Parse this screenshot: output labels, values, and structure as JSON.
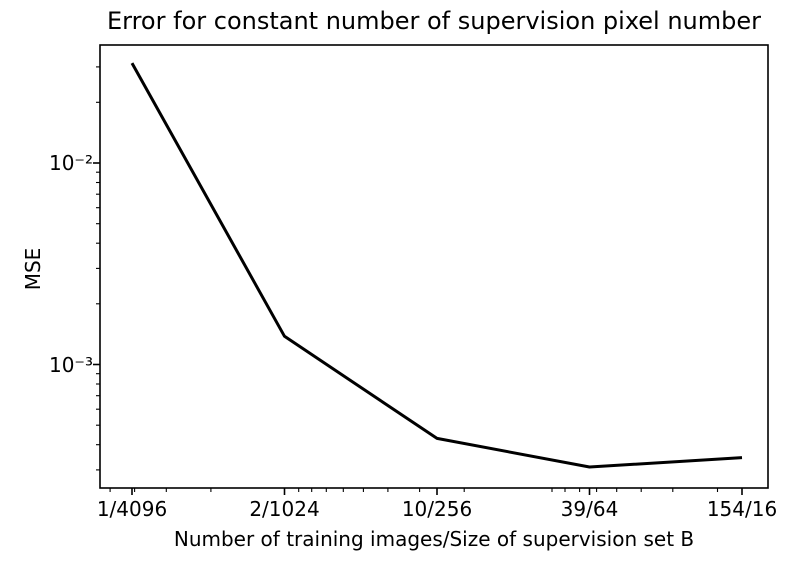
{
  "chart_data": {
    "type": "line",
    "title": "Error for constant number of supervision pixel number",
    "xlabel": "Number of training images/Size of supervision set B",
    "ylabel": "MSE",
    "categories": [
      "1/4096",
      "2/1024",
      "10/256",
      "39/64",
      "154/16"
    ],
    "x_numerators": [
      1,
      2,
      10,
      39,
      154
    ],
    "x_denominators": [
      4096,
      1024,
      256,
      64,
      16
    ],
    "series": [
      {
        "name": "MSE",
        "values": [
          0.0313,
          0.00138,
          0.00043,
          0.00031,
          0.000345
        ]
      }
    ],
    "y_scale": "log",
    "x_scale": "log of supervision set size B (categories equally spaced, B shrinks 4x each step)",
    "y_major_ticks": [
      0.01,
      0.001
    ],
    "y_tick_labels": [
      "10⁻²",
      "10⁻³"
    ],
    "ylim": [
      0.000244,
      0.0385
    ],
    "grid": false,
    "legend": false,
    "line_color": "#000000",
    "background_color": "#ffffff",
    "text_color": "#000000"
  }
}
